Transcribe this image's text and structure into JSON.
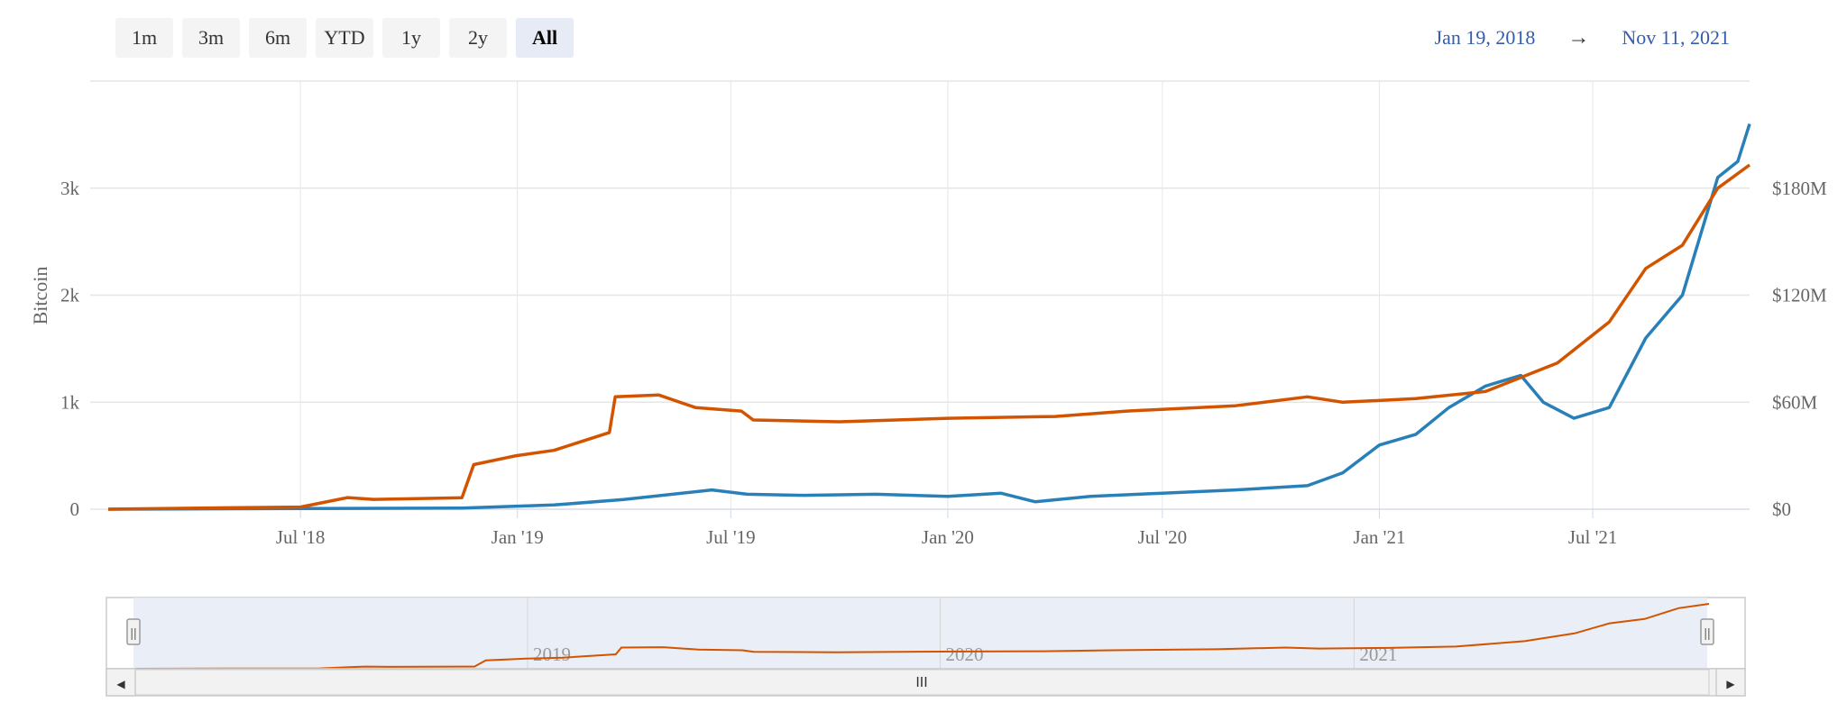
{
  "range_selector": {
    "buttons": [
      "1m",
      "3m",
      "6m",
      "YTD",
      "1y",
      "2y",
      "All"
    ],
    "active": "All"
  },
  "date_range": {
    "from": "Jan 19, 2018",
    "arrow": "→",
    "to": "Nov 11, 2021"
  },
  "colors": {
    "btc_series": "#2980b9",
    "usd_series": "#d35400",
    "navigator_mask": "#e6ebf5",
    "grid": "#e6e6e6"
  },
  "chart_data": {
    "type": "line",
    "ylabel_left": "Bitcoin",
    "ylabel_right": "",
    "grid": true,
    "x_range": [
      "2018-01-19",
      "2021-11-11"
    ],
    "x_ticks": [
      "2018-07-01",
      "2019-01-01",
      "2019-07-01",
      "2020-01-01",
      "2020-07-01",
      "2021-01-01",
      "2021-07-01"
    ],
    "x_tick_labels": [
      "Jul '18",
      "Jan '19",
      "Jul '19",
      "Jan '20",
      "Jul '20",
      "Jan '21",
      "Jul '21"
    ],
    "y_left": {
      "range": [
        0,
        4000
      ],
      "ticks": [
        0,
        1000,
        2000,
        3000
      ],
      "tick_labels": [
        "0",
        "1k",
        "2k",
        "3k"
      ]
    },
    "y_right": {
      "range": [
        0,
        240
      ],
      "ticks": [
        0,
        60,
        120,
        180
      ],
      "tick_labels": [
        "$0",
        "$60M",
        "$120M",
        "$180M"
      ]
    },
    "series": [
      {
        "axis": "left",
        "color": "#2980b9",
        "points": [
          [
            "2018-01-19",
            0
          ],
          [
            "2018-06-01",
            5
          ],
          [
            "2018-11-15",
            10
          ],
          [
            "2019-02-01",
            40
          ],
          [
            "2019-04-01",
            90
          ],
          [
            "2019-06-15",
            180
          ],
          [
            "2019-07-15",
            140
          ],
          [
            "2019-09-01",
            130
          ],
          [
            "2019-11-01",
            140
          ],
          [
            "2020-01-01",
            120
          ],
          [
            "2020-02-15",
            150
          ],
          [
            "2020-03-15",
            70
          ],
          [
            "2020-05-01",
            120
          ],
          [
            "2020-07-01",
            150
          ],
          [
            "2020-09-01",
            180
          ],
          [
            "2020-11-01",
            220
          ],
          [
            "2020-12-01",
            340
          ],
          [
            "2021-01-01",
            600
          ],
          [
            "2021-02-01",
            700
          ],
          [
            "2021-03-01",
            950
          ],
          [
            "2021-04-01",
            1150
          ],
          [
            "2021-05-01",
            1250
          ],
          [
            "2021-05-20",
            1000
          ],
          [
            "2021-06-15",
            850
          ],
          [
            "2021-07-15",
            950
          ],
          [
            "2021-08-15",
            1600
          ],
          [
            "2021-09-15",
            2000
          ],
          [
            "2021-10-15",
            3100
          ],
          [
            "2021-11-01",
            3250
          ],
          [
            "2021-11-11",
            3600
          ]
        ]
      },
      {
        "axis": "right",
        "color": "#d35400",
        "points": [
          [
            "2018-01-19",
            0
          ],
          [
            "2018-05-01",
            0.8
          ],
          [
            "2018-07-01",
            1.2
          ],
          [
            "2018-08-10",
            6.5
          ],
          [
            "2018-09-01",
            5.5
          ],
          [
            "2018-11-15",
            6.4
          ],
          [
            "2018-11-25",
            25
          ],
          [
            "2018-12-31",
            30
          ],
          [
            "2019-02-01",
            33
          ],
          [
            "2019-03-20",
            43
          ],
          [
            "2019-03-25",
            63
          ],
          [
            "2019-05-01",
            64
          ],
          [
            "2019-06-01",
            57
          ],
          [
            "2019-07-10",
            55
          ],
          [
            "2019-07-20",
            50
          ],
          [
            "2019-10-01",
            49
          ],
          [
            "2020-01-01",
            51
          ],
          [
            "2020-04-01",
            52
          ],
          [
            "2020-06-01",
            55
          ],
          [
            "2020-09-01",
            58
          ],
          [
            "2020-11-01",
            63
          ],
          [
            "2020-12-01",
            60
          ],
          [
            "2021-02-01",
            62
          ],
          [
            "2021-04-01",
            66
          ],
          [
            "2021-06-01",
            82
          ],
          [
            "2021-07-15",
            105
          ],
          [
            "2021-08-15",
            135
          ],
          [
            "2021-09-15",
            148
          ],
          [
            "2021-10-15",
            180
          ],
          [
            "2021-11-11",
            193
          ]
        ]
      }
    ],
    "navigator": {
      "axis_labels": [
        "2019",
        "2020",
        "2021"
      ],
      "scrollbar_grip": "III",
      "left_arrow": "◀",
      "right_arrow": "▶",
      "handle_grip": "||"
    }
  }
}
